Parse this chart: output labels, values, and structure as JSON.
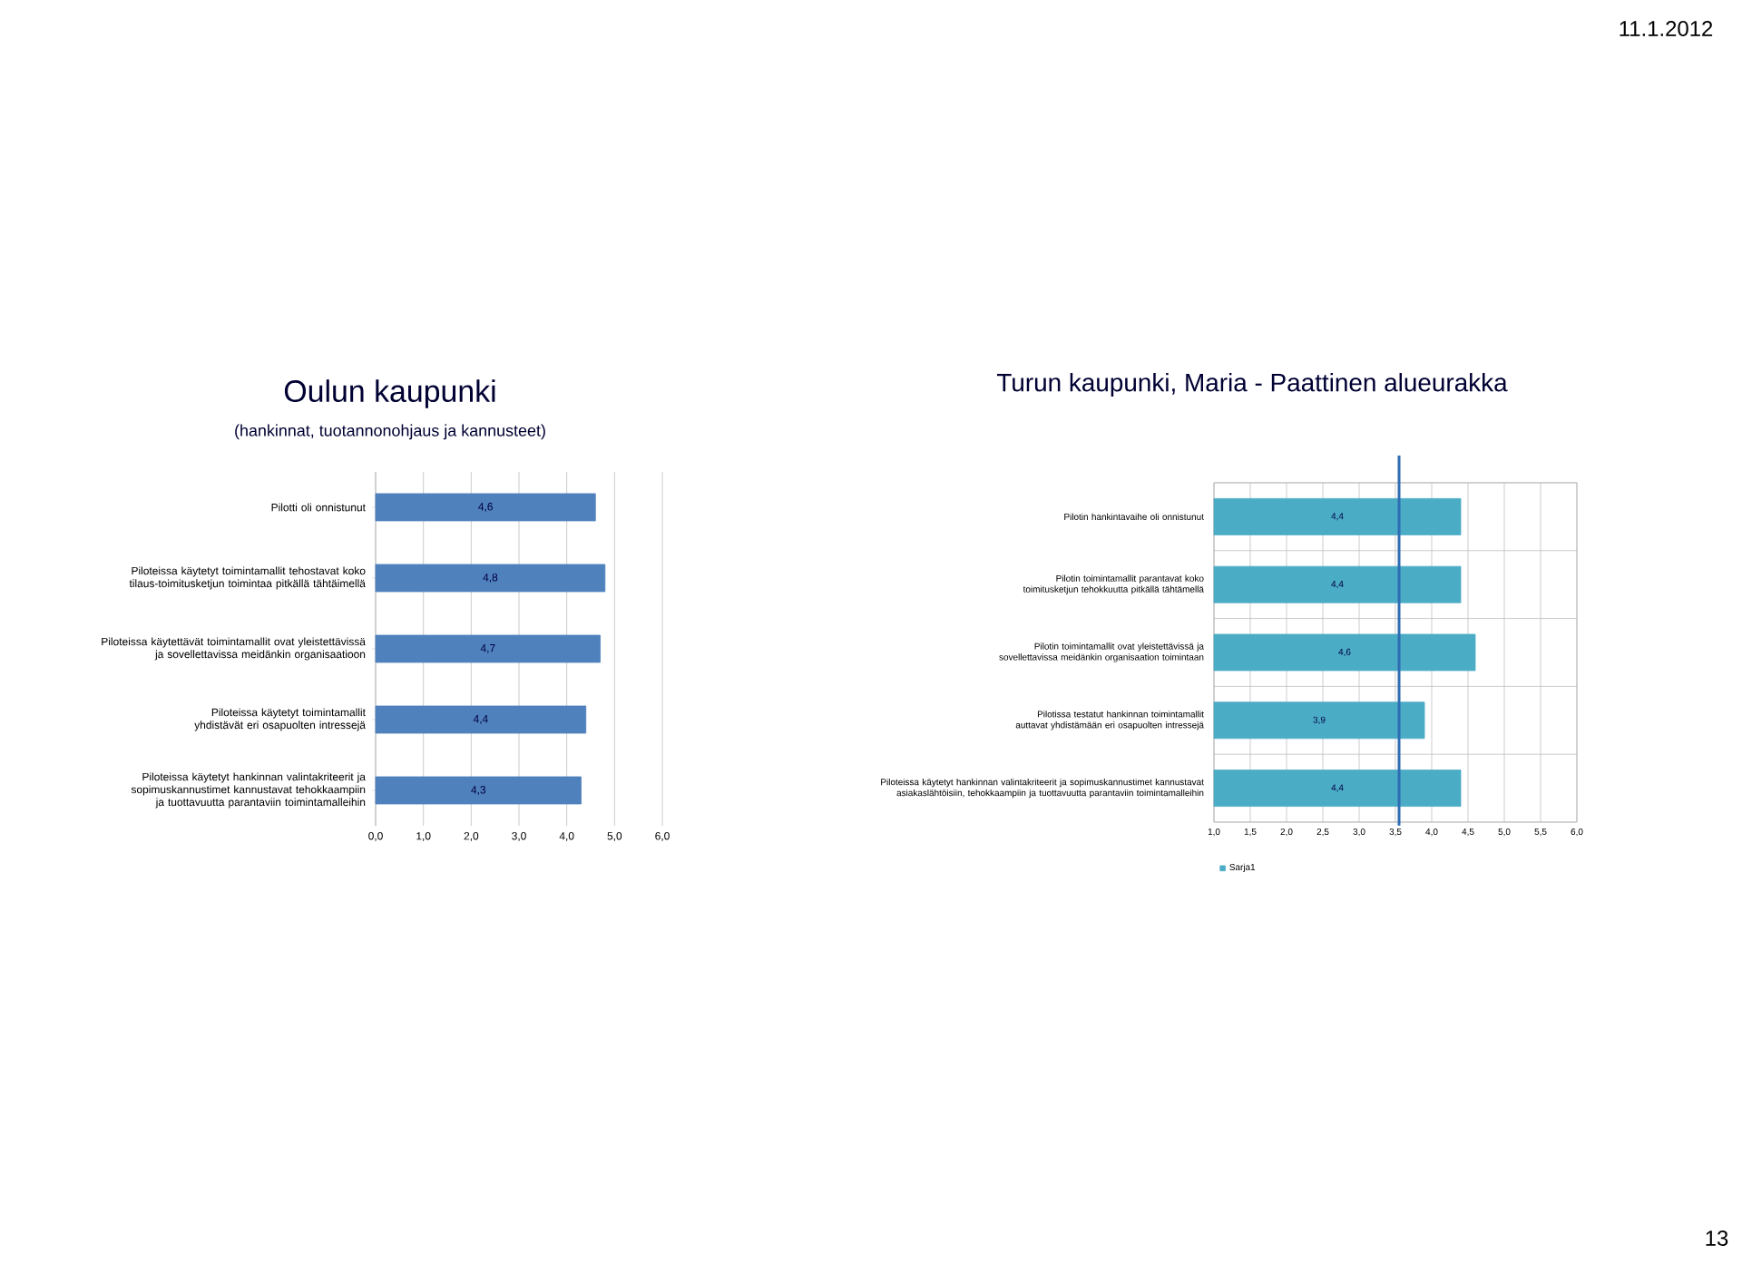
{
  "chart_data": [
    {
      "type": "bar",
      "orientation": "horizontal",
      "title": "Oulun kaupunki",
      "subtitle": "(hankinnat, tuotannonohjaus ja kannusteet)",
      "categories": [
        "Pilotti oli onnistunut",
        "Piloteissa käytetyt toimintamallit tehostavat koko tilaus-toimitusketjun toimintaa pitkällä tähtäimellä",
        "Piloteissa käytettävät toimintamallit ovat yleistettävissä ja sovellettavissa meidänkin organisaatioon",
        "Piloteissa käytetyt toimintamallit yhdistävät eri osapuolten intressejä",
        "Piloteissa käytetyt hankinnan valintakriteerit ja sopimuskannustimet kannustavat tehokkaampiin ja tuottavuutta parantaviin toimintamalleihin"
      ],
      "values": [
        4.6,
        4.8,
        4.7,
        4.4,
        4.3
      ],
      "value_labels": [
        "4,6",
        "4,8",
        "4,7",
        "4,4",
        "4,3"
      ],
      "color": "#4f81bd",
      "xlim": [
        0,
        6
      ],
      "xticks": [
        {
          "value": 0,
          "label": "0,0"
        },
        {
          "value": 1,
          "label": "1,0"
        },
        {
          "value": 2,
          "label": "2,0"
        },
        {
          "value": 3,
          "label": "3,0"
        },
        {
          "value": 4,
          "label": "4,0"
        },
        {
          "value": 5,
          "label": "5,0"
        },
        {
          "value": 6,
          "label": "6,0"
        }
      ],
      "grid": "x",
      "legend": false
    },
    {
      "type": "bar",
      "orientation": "horizontal",
      "title": "Turun kaupunki, Maria  - Paattinen alueurakka",
      "categories": [
        "Pilotin hankintavaihe oli onnistunut",
        "Pilotin toimintamallit parantavat koko toimitusketjun tehokkuutta pitkällä tähtämellä",
        "Pilotin toimintamallit ovat yleistettävissä ja sovellettavissa meidänkin organisaation toimintaan",
        "Pilotissa testatut hankinnan toimintamallit auttavat yhdistämään eri osapuolten intressejä",
        "Piloteissa käytetyt hankinnan valintakriteerit ja sopimuskannustimet kannustavat asiakaslähtöisiin, tehokkaampiin ja tuottavuutta  parantaviin toimintamalleihin"
      ],
      "series": [
        {
          "name": "Sarja1",
          "color": "#4bacc6",
          "values": [
            4.4,
            4.4,
            4.6,
            3.9,
            4.4
          ],
          "value_labels": [
            "4,4",
            "4,4",
            "4,6",
            "3,9",
            "4,4"
          ]
        }
      ],
      "xlim": [
        1,
        6
      ],
      "xticks": [
        {
          "value": 1,
          "label": "1,0"
        },
        {
          "value": 1.5,
          "label": "1,5"
        },
        {
          "value": 2,
          "label": "2,0"
        },
        {
          "value": 2.5,
          "label": "2,5"
        },
        {
          "value": 3,
          "label": "3,0"
        },
        {
          "value": 3.5,
          "label": "3,5"
        },
        {
          "value": 4,
          "label": "4,0"
        },
        {
          "value": 4.5,
          "label": "4,5"
        },
        {
          "value": 5,
          "label": "5,0"
        },
        {
          "value": 5.5,
          "label": "5,5"
        },
        {
          "value": 6,
          "label": "6,0"
        }
      ],
      "ref_lines": [
        {
          "axis": "x",
          "value": 3.55,
          "color": "#2e6db4"
        }
      ],
      "grid": true,
      "legend": "bottom left",
      "annotations": [
        "11.1.2012",
        "13"
      ]
    }
  ]
}
